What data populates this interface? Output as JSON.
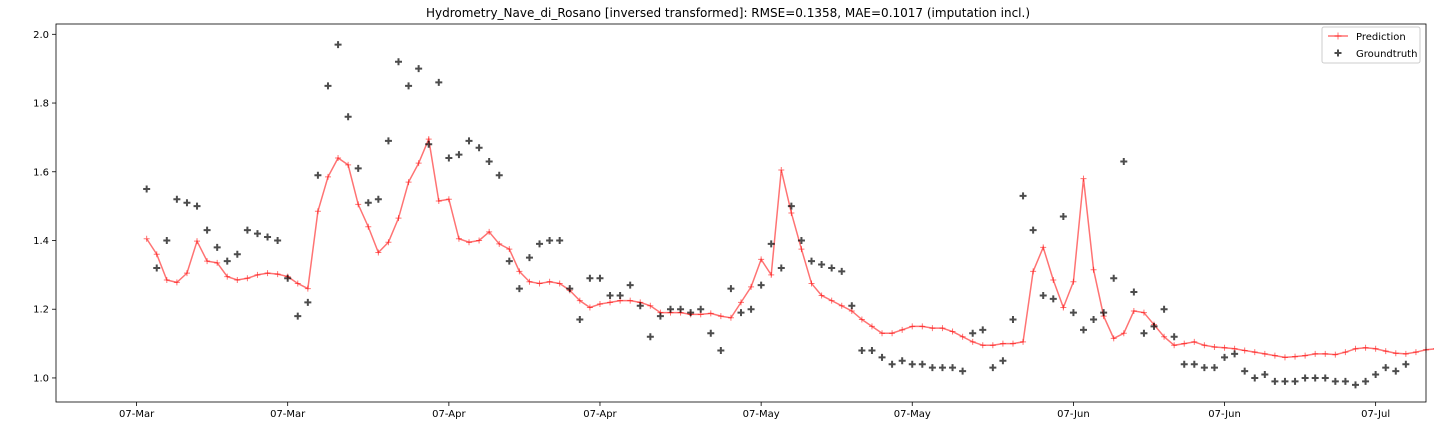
{
  "chart_data": {
    "type": "line",
    "title": "Hydrometry_Nave_di_Rosano [inversed transformed]: RMSE=0.1358, MAE=0.1017 (imputation incl.)",
    "xlabel": "",
    "ylabel": "",
    "xlim": [
      -9,
      127
    ],
    "ylim": [
      0.93,
      2.03
    ],
    "x_ticks": [
      {
        "x": -1,
        "label": "07-Mar"
      },
      {
        "x": 14,
        "label": "07-Mar"
      },
      {
        "x": 30,
        "label": "07-Apr"
      },
      {
        "x": 45,
        "label": "07-Apr"
      },
      {
        "x": 61,
        "label": "07-May"
      },
      {
        "x": 76,
        "label": "07-May"
      },
      {
        "x": 92,
        "label": "07-Jun"
      },
      {
        "x": 107,
        "label": "07-Jun"
      },
      {
        "x": 122,
        "label": "07-Jul"
      }
    ],
    "y_ticks": [
      1.0,
      1.2,
      1.4,
      1.6,
      1.8,
      2.0
    ],
    "y_tick_labels": [
      "1.0",
      "1.2",
      "1.4",
      "1.6",
      "1.8",
      "2.0"
    ],
    "legend_position": "top-right",
    "series": [
      {
        "name": "Prediction",
        "kind": "line",
        "color": "#ff0000",
        "x_start": 0,
        "values": [
          1.405,
          1.36,
          1.285,
          1.278,
          1.305,
          1.398,
          1.34,
          1.335,
          1.295,
          1.285,
          1.29,
          1.3,
          1.305,
          1.302,
          1.295,
          1.275,
          1.26,
          1.485,
          1.585,
          1.64,
          1.62,
          1.505,
          1.44,
          1.365,
          1.395,
          1.465,
          1.57,
          1.625,
          1.695,
          1.515,
          1.52,
          1.405,
          1.395,
          1.4,
          1.425,
          1.39,
          1.375,
          1.31,
          1.28,
          1.275,
          1.28,
          1.275,
          1.255,
          1.225,
          1.205,
          1.215,
          1.22,
          1.225,
          1.225,
          1.22,
          1.21,
          1.19,
          1.19,
          1.19,
          1.185,
          1.185,
          1.188,
          1.18,
          1.175,
          1.22,
          1.265,
          1.345,
          1.3,
          1.605,
          1.48,
          1.375,
          1.275,
          1.24,
          1.225,
          1.21,
          1.195,
          1.17,
          1.15,
          1.13,
          1.13,
          1.14,
          1.15,
          1.15,
          1.145,
          1.145,
          1.135,
          1.12,
          1.105,
          1.095,
          1.095,
          1.1,
          1.1,
          1.105,
          1.31,
          1.38,
          1.285,
          1.205,
          1.28,
          1.58,
          1.315,
          1.18,
          1.115,
          1.13,
          1.195,
          1.19,
          1.155,
          1.12,
          1.095,
          1.1,
          1.105,
          1.095,
          1.09,
          1.088,
          1.085,
          1.08,
          1.075,
          1.07,
          1.065,
          1.06,
          1.062,
          1.065,
          1.07,
          1.07,
          1.068,
          1.075,
          1.085,
          1.088,
          1.085,
          1.078,
          1.072,
          1.07,
          1.075,
          1.082,
          1.085
        ]
      },
      {
        "name": "Groundtruth",
        "kind": "scatter",
        "color": "#000000",
        "x_start": 0,
        "values": [
          1.55,
          1.32,
          1.4,
          1.52,
          1.51,
          1.5,
          1.43,
          1.38,
          1.34,
          1.36,
          1.43,
          1.42,
          1.41,
          1.4,
          1.29,
          1.18,
          1.22,
          1.59,
          1.85,
          1.97,
          1.76,
          1.61,
          1.51,
          1.52,
          1.69,
          1.92,
          1.85,
          1.9,
          1.68,
          1.86,
          1.64,
          1.65,
          1.69,
          1.67,
          1.63,
          1.59,
          1.34,
          1.26,
          1.35,
          1.39,
          1.4,
          1.4,
          1.26,
          1.17,
          1.29,
          1.29,
          1.24,
          1.24,
          1.27,
          1.21,
          1.12,
          1.18,
          1.2,
          1.2,
          1.19,
          1.2,
          1.13,
          1.08,
          1.26,
          1.19,
          1.2,
          1.27,
          1.39,
          1.32,
          1.5,
          1.4,
          1.34,
          1.33,
          1.32,
          1.31,
          1.21,
          1.08,
          1.08,
          1.06,
          1.04,
          1.05,
          1.04,
          1.04,
          1.03,
          1.03,
          1.03,
          1.02,
          1.13,
          1.14,
          1.03,
          1.05,
          1.17,
          1.53,
          1.43,
          1.24,
          1.23,
          1.47,
          1.19,
          1.14,
          1.17,
          1.19,
          1.29,
          1.63,
          1.25,
          1.13,
          1.15,
          1.2,
          1.12,
          1.04,
          1.04,
          1.03,
          1.03,
          1.06,
          1.07,
          1.02,
          1.0,
          1.01,
          0.99,
          0.99,
          0.99,
          1.0,
          1.0,
          1.0,
          0.99,
          0.99,
          0.98,
          0.99,
          1.01,
          1.03,
          1.02,
          1.04
        ]
      }
    ]
  }
}
